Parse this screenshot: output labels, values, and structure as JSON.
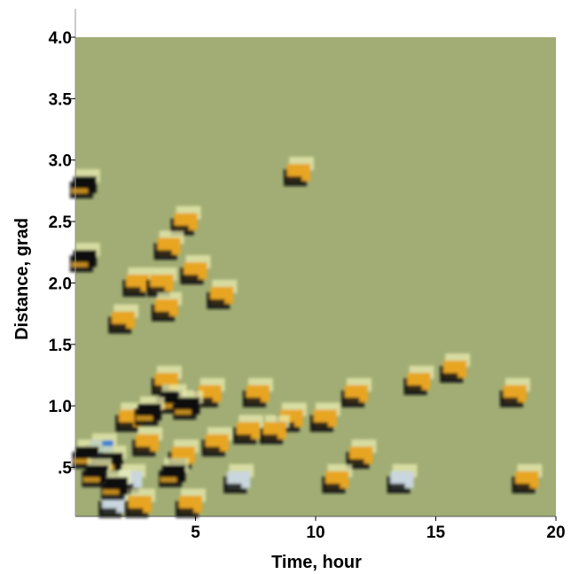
{
  "chart_data": {
    "type": "heatmap",
    "xlabel": "Time, hour",
    "ylabel": "Distance, grad",
    "xlim": [
      0,
      20
    ],
    "ylim": [
      0.1,
      4.0
    ],
    "x_ticks": [
      5,
      10,
      15,
      20
    ],
    "x_tick_labels": [
      "5",
      "10",
      "15",
      "20"
    ],
    "y_ticks": [
      0.5,
      1.0,
      1.5,
      2.0,
      2.5,
      3.0,
      3.5,
      4.0
    ],
    "y_tick_labels": [
      ".5",
      "1.0",
      "1.5",
      "2.0",
      "2.5",
      "3.0",
      "3.5",
      "4.0"
    ],
    "background_color": "#a1ad74",
    "palette": {
      "high": "#e8a520",
      "low": "#111111",
      "highlight": "#e9ecb0",
      "cool": "#c9d6de",
      "blue": "#3a7ad8"
    },
    "grid": false,
    "events": [
      {
        "x": 0.4,
        "y": 2.8,
        "kind": "dark"
      },
      {
        "x": 0.4,
        "y": 2.2,
        "kind": "dark"
      },
      {
        "x": 9.3,
        "y": 2.9,
        "kind": "warm"
      },
      {
        "x": 4.6,
        "y": 2.5,
        "kind": "warm"
      },
      {
        "x": 3.9,
        "y": 2.3,
        "kind": "warm"
      },
      {
        "x": 2.6,
        "y": 2.0,
        "kind": "warm"
      },
      {
        "x": 3.6,
        "y": 2.0,
        "kind": "warm"
      },
      {
        "x": 5.0,
        "y": 2.1,
        "kind": "warm"
      },
      {
        "x": 6.1,
        "y": 1.9,
        "kind": "warm"
      },
      {
        "x": 3.8,
        "y": 1.8,
        "kind": "warm"
      },
      {
        "x": 2.0,
        "y": 1.7,
        "kind": "warm"
      },
      {
        "x": 3.8,
        "y": 1.2,
        "kind": "warm"
      },
      {
        "x": 4.0,
        "y": 1.05,
        "kind": "dark"
      },
      {
        "x": 5.6,
        "y": 1.1,
        "kind": "warm"
      },
      {
        "x": 7.6,
        "y": 1.1,
        "kind": "warm"
      },
      {
        "x": 11.7,
        "y": 1.1,
        "kind": "warm"
      },
      {
        "x": 14.3,
        "y": 1.2,
        "kind": "warm"
      },
      {
        "x": 15.8,
        "y": 1.3,
        "kind": "warm"
      },
      {
        "x": 18.3,
        "y": 1.1,
        "kind": "warm"
      },
      {
        "x": 2.3,
        "y": 0.9,
        "kind": "warm"
      },
      {
        "x": 3.1,
        "y": 0.95,
        "kind": "dark"
      },
      {
        "x": 4.7,
        "y": 1.0,
        "kind": "dark"
      },
      {
        "x": 10.4,
        "y": 0.9,
        "kind": "warm"
      },
      {
        "x": 9.0,
        "y": 0.9,
        "kind": "warm"
      },
      {
        "x": 8.3,
        "y": 0.8,
        "kind": "warm"
      },
      {
        "x": 7.2,
        "y": 0.8,
        "kind": "warm"
      },
      {
        "x": 1.1,
        "y": 0.65,
        "kind": "blue"
      },
      {
        "x": 0.5,
        "y": 0.6,
        "kind": "dark"
      },
      {
        "x": 3.0,
        "y": 0.7,
        "kind": "warm"
      },
      {
        "x": 5.9,
        "y": 0.7,
        "kind": "warm"
      },
      {
        "x": 11.9,
        "y": 0.6,
        "kind": "warm"
      },
      {
        "x": 1.5,
        "y": 0.55,
        "kind": "dark"
      },
      {
        "x": 4.5,
        "y": 0.6,
        "kind": "warm"
      },
      {
        "x": 0.9,
        "y": 0.45,
        "kind": "dark"
      },
      {
        "x": 2.3,
        "y": 0.4,
        "kind": "cool"
      },
      {
        "x": 4.1,
        "y": 0.45,
        "kind": "dark"
      },
      {
        "x": 6.8,
        "y": 0.4,
        "kind": "cool"
      },
      {
        "x": 10.9,
        "y": 0.4,
        "kind": "warm"
      },
      {
        "x": 13.6,
        "y": 0.4,
        "kind": "cool"
      },
      {
        "x": 18.8,
        "y": 0.4,
        "kind": "warm"
      },
      {
        "x": 1.6,
        "y": 0.2,
        "kind": "cool"
      },
      {
        "x": 2.7,
        "y": 0.2,
        "kind": "warm"
      },
      {
        "x": 4.8,
        "y": 0.2,
        "kind": "warm"
      },
      {
        "x": 1.7,
        "y": 0.35,
        "kind": "dark"
      }
    ]
  }
}
